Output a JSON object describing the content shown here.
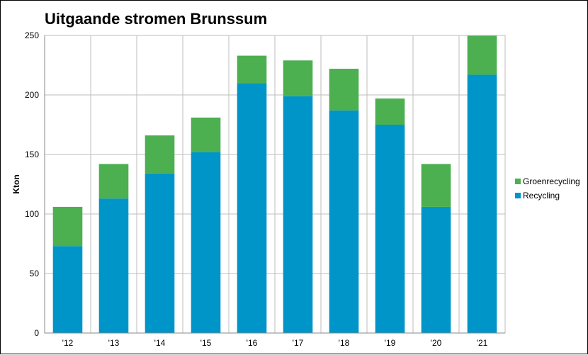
{
  "chart_data": {
    "type": "bar",
    "stacked": true,
    "title": "Uitgaande stromen Brunssum",
    "xlabel": "",
    "ylabel": "Kton",
    "ylim": [
      0,
      250
    ],
    "yticks": [
      0,
      50,
      100,
      150,
      200,
      250
    ],
    "grid": true,
    "legend_position": "right",
    "categories": [
      "'12",
      "'13",
      "'14",
      "'15",
      "'16",
      "'17",
      "'18",
      "'19",
      "'20",
      "'21"
    ],
    "series": [
      {
        "name": "Recycling",
        "color": "#0095C8",
        "values": [
          73,
          113,
          134,
          152,
          210,
          199,
          187,
          175,
          106,
          217
        ]
      },
      {
        "name": "Groenrecycling",
        "color": "#4CAF50",
        "values": [
          33,
          29,
          32,
          29,
          23,
          30,
          35,
          22,
          36,
          33
        ]
      }
    ]
  }
}
